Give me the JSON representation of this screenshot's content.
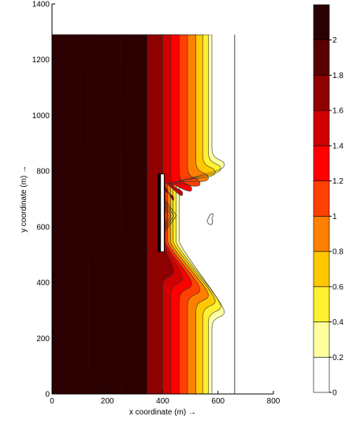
{
  "chart_data": {
    "type": "heatmap",
    "title": "",
    "xlabel": "x coordinate (m) →",
    "ylabel": "y coordinate (m) →",
    "xlim": [
      0,
      800
    ],
    "ylim": [
      0,
      1400
    ],
    "xticks": [
      0,
      200,
      400,
      600,
      800
    ],
    "yticks": [
      0,
      200,
      400,
      600,
      800,
      1000,
      1200,
      1400
    ],
    "grid": false,
    "domain": {
      "x": [
        0,
        660
      ],
      "y": [
        0,
        1290
      ]
    },
    "vertical_line_x": 660,
    "obstacle": {
      "x": [
        385,
        400
      ],
      "y": [
        510,
        790
      ]
    },
    "colorbar": {
      "levels": [
        0,
        0.2,
        0.4,
        0.6,
        0.8,
        1,
        1.2,
        1.4,
        1.6,
        1.8,
        2,
        2.2
      ],
      "tick_labels": [
        "0",
        "0.2",
        "0.4",
        "0.6",
        "0.8",
        "1",
        "1.2",
        "1.4",
        "1.6",
        "1.8",
        "2"
      ],
      "colors": [
        "#ffffff",
        "#ffffa0",
        "#fff030",
        "#ffc800",
        "#ff8000",
        "#ff4000",
        "#ff0000",
        "#d00000",
        "#8f0000",
        "#5a0000",
        "#2a0000",
        "#000000"
      ]
    },
    "bands": [
      {
        "band": 1,
        "far_x": 578,
        "near_x": 460,
        "lobe_x": 623,
        "lobe_y_low": 295,
        "lobe_y_high": 822
      },
      {
        "band": 2,
        "far_x": 565,
        "near_x": 448,
        "lobe_x": 610,
        "lobe_y_low": 315,
        "lobe_y_high": 808
      },
      {
        "band": 3,
        "far_x": 545,
        "near_x": 438,
        "lobe_x": 590,
        "lobe_y_low": 335,
        "lobe_y_high": 795
      },
      {
        "band": 4,
        "far_x": 520,
        "near_x": 428,
        "lobe_x": 565,
        "lobe_y_low": 355,
        "lobe_y_high": 775
      },
      {
        "band": 5,
        "far_x": 490,
        "near_x": 418,
        "lobe_x": 535,
        "lobe_y_low": 375,
        "lobe_y_high": 755
      },
      {
        "band": 6,
        "far_x": 460,
        "near_x": 410,
        "lobe_x": 505,
        "lobe_y_low": 395,
        "lobe_y_high": 735
      },
      {
        "band": 7,
        "far_x": 430,
        "near_x": 405,
        "lobe_x": 472,
        "lobe_y_low": 415,
        "lobe_y_high": 718
      },
      {
        "band": 8,
        "far_x": 400,
        "near_x": 400,
        "lobe_x": 440,
        "lobe_y_low": 440,
        "lobe_y_high": 700
      },
      {
        "band": 9,
        "far_x": 345,
        "near_x": 345,
        "lobe_x": 345,
        "lobe_y_low": 480,
        "lobe_y_high": 660
      }
    ]
  }
}
